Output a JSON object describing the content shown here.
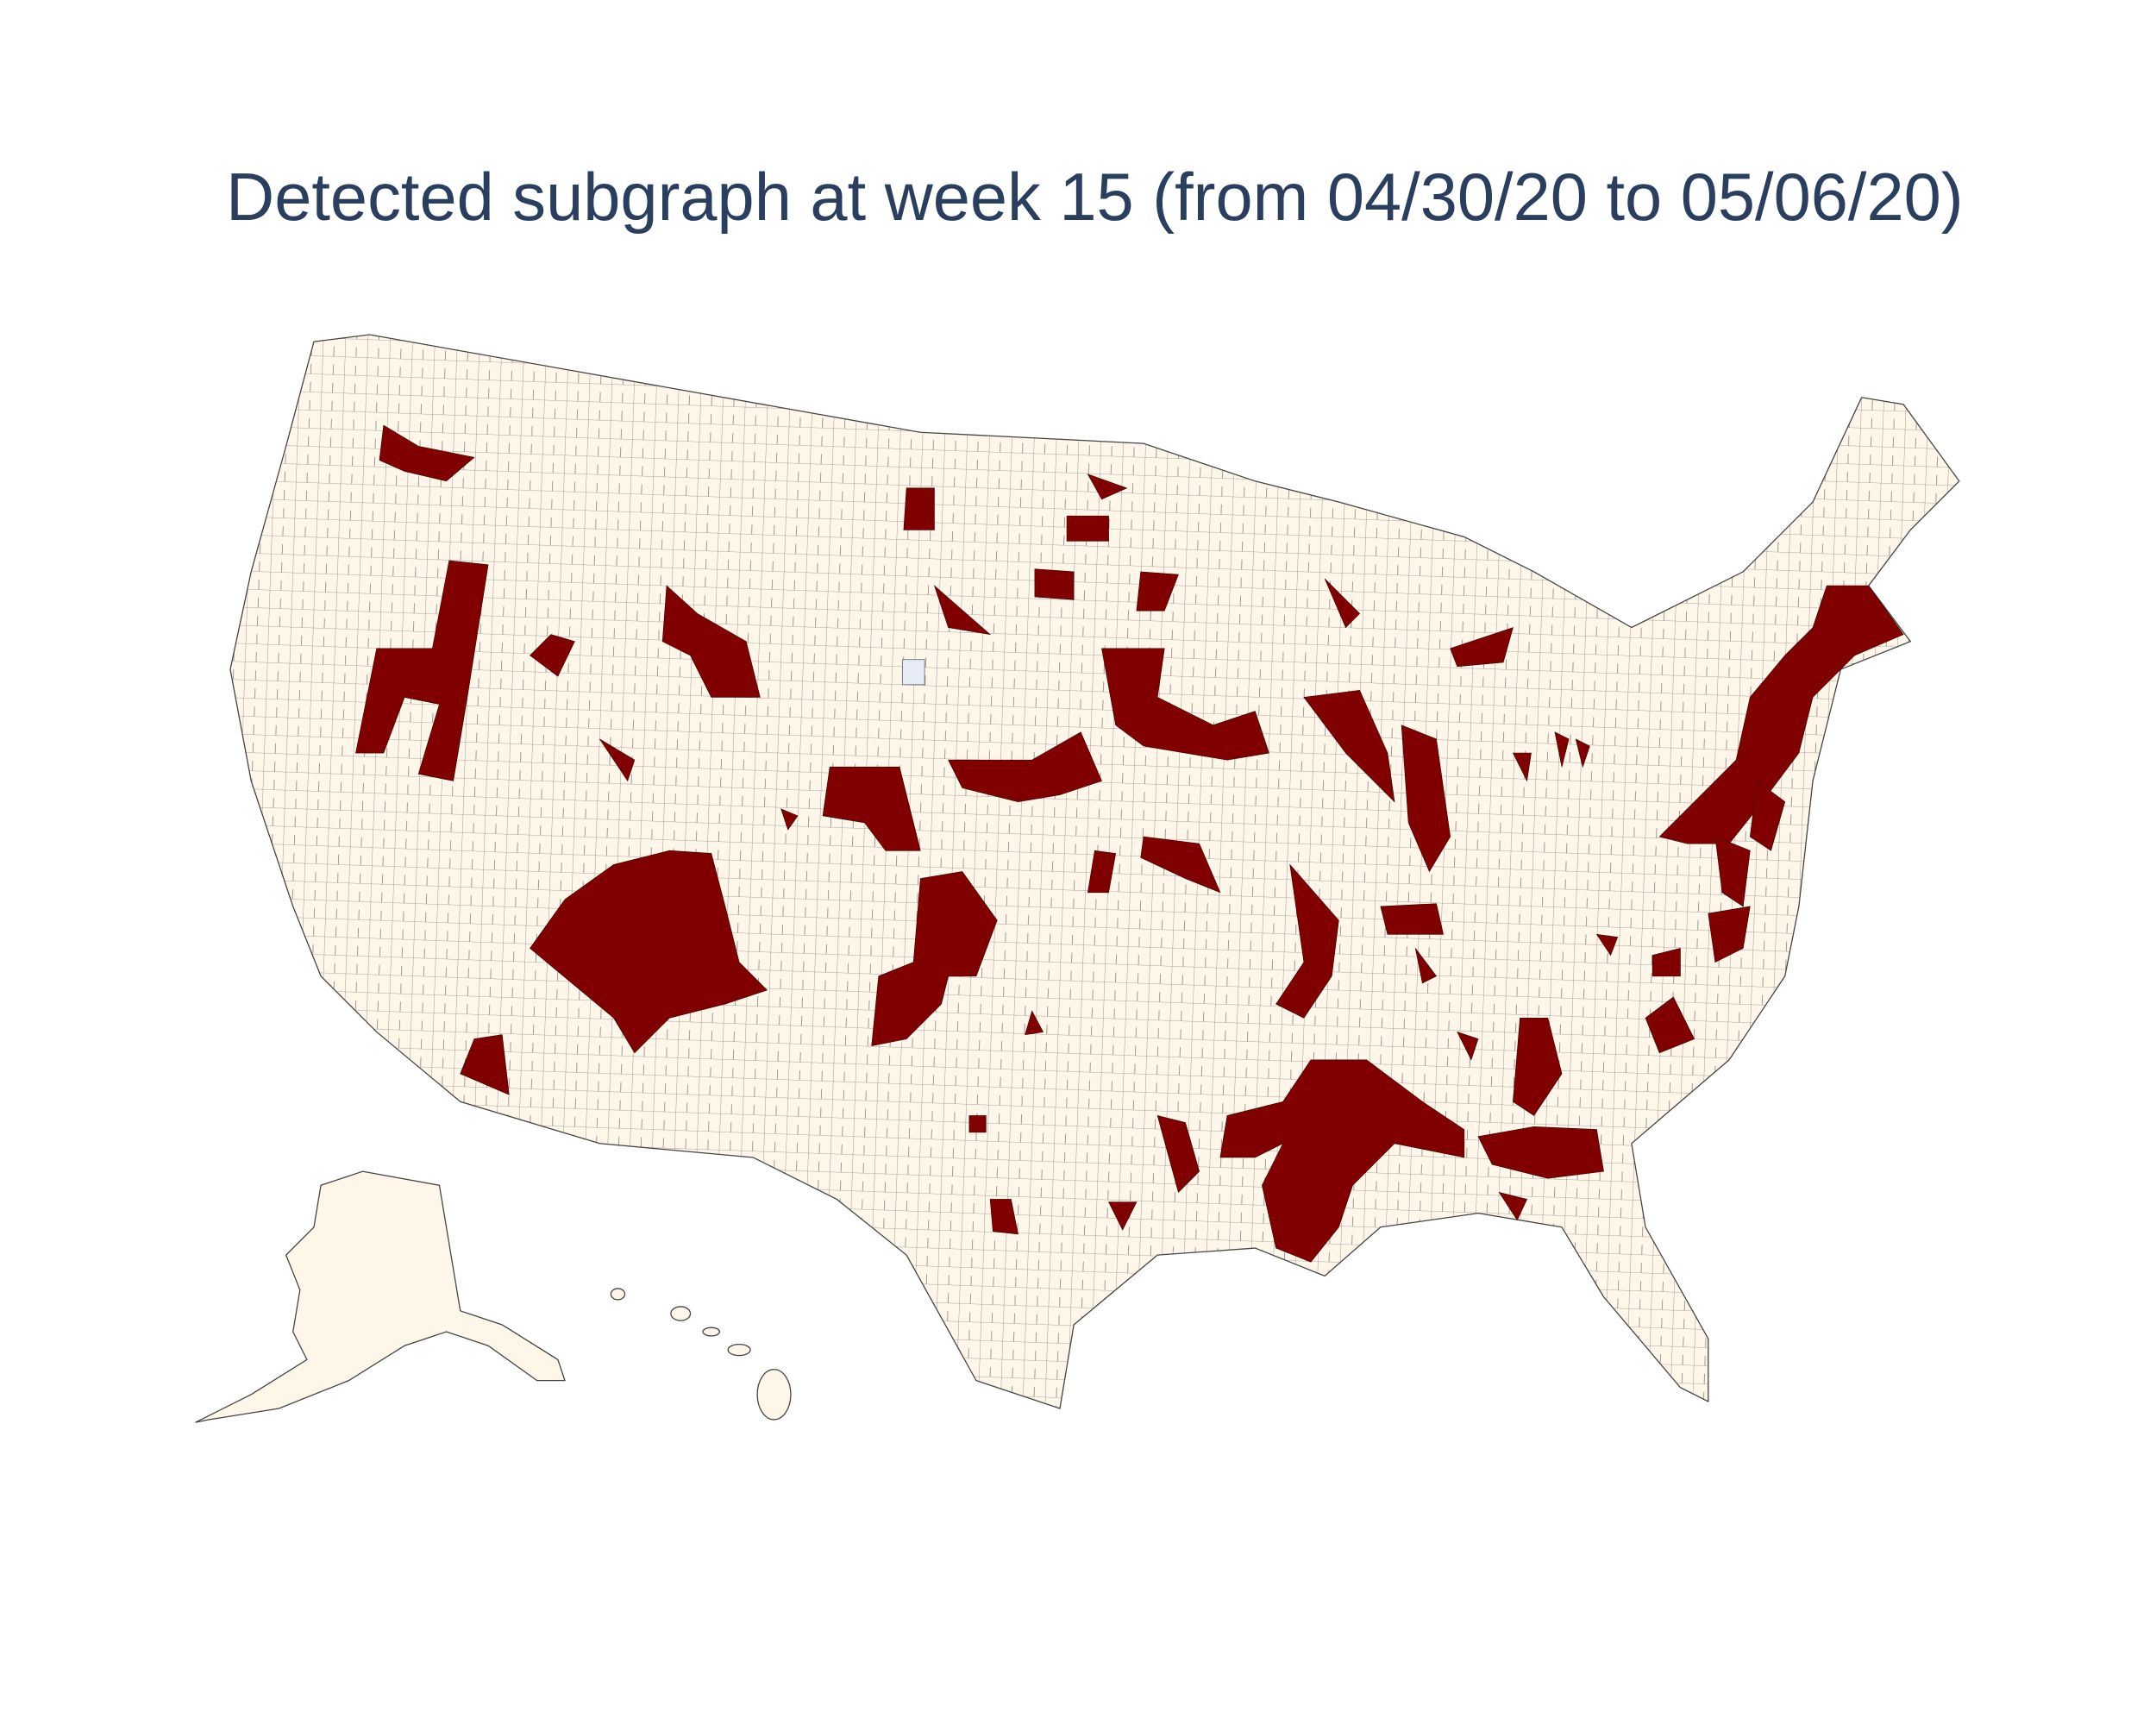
{
  "title": "Detected subgraph at week 15 (from 04/30/20 to 05/06/20)"
}
